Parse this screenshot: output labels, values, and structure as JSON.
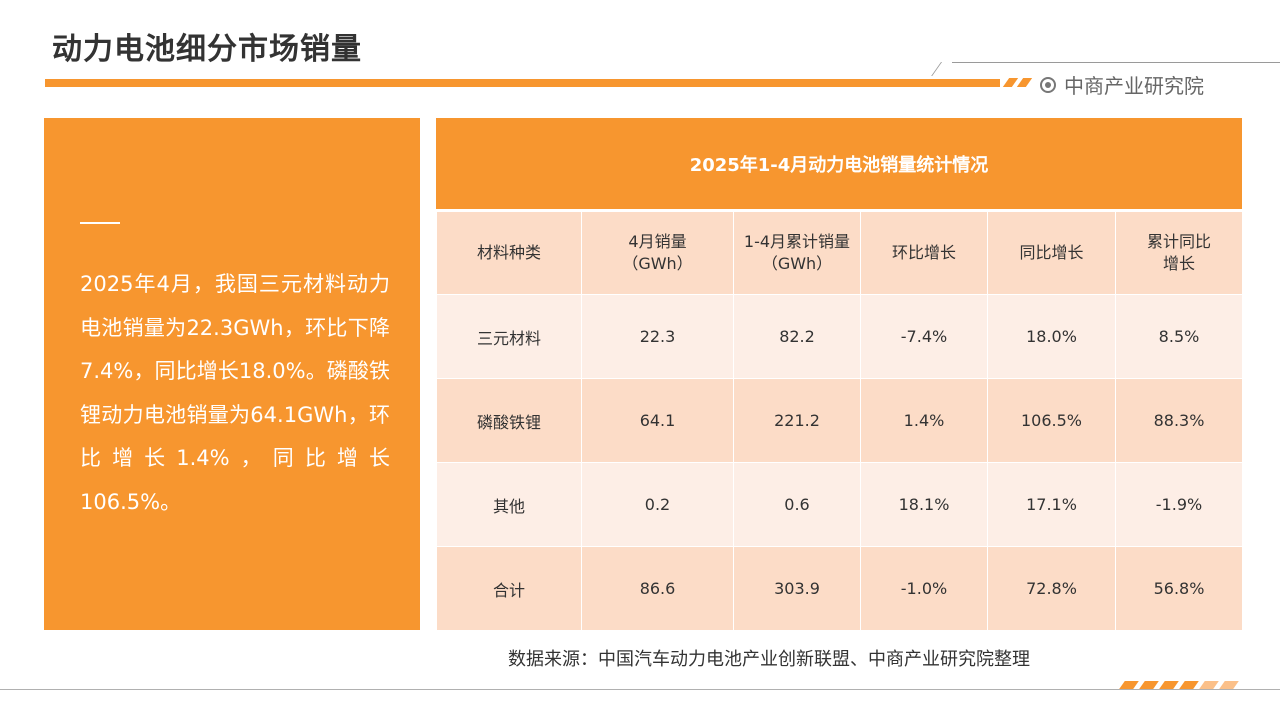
{
  "header": {
    "title": "动力电池细分市场销量",
    "brand": "中商产业研究院"
  },
  "summary": {
    "text": "2025年4月，我国三元材料动力电池销量为22.3GWh，环比下降7.4%，同比增长18.0%。磷酸铁锂动力电池销量为64.1GWh，环比增长1.4%，同比增长106.5%。"
  },
  "table": {
    "title": "2025年1-4月动力电池销量统计情况",
    "headers": [
      "材料种类",
      "4月销量\n（GWh）",
      "1-4月累计销量\n（GWh）",
      "环比增长",
      "同比增长",
      "累计同比\n增长"
    ],
    "rows": [
      [
        "三元材料",
        "22.3",
        "82.2",
        "-7.4%",
        "18.0%",
        "8.5%"
      ],
      [
        "磷酸铁锂",
        "64.1",
        "221.2",
        "1.4%",
        "106.5%",
        "88.3%"
      ],
      [
        "其他",
        "0.2",
        "0.6",
        "18.1%",
        "17.1%",
        "-1.9%"
      ],
      [
        "合计",
        "86.6",
        "303.9",
        "-1.0%",
        "72.8%",
        "56.8%"
      ]
    ]
  },
  "source": "数据来源：中国汽车动力电池产业创新联盟、中商产业研究院整理",
  "colors": {
    "accent": "#f7962f",
    "row_light": "#fdeee6",
    "row_dark": "#fcdcc7"
  },
  "icons": {
    "brand": "brand-logo-icon"
  }
}
